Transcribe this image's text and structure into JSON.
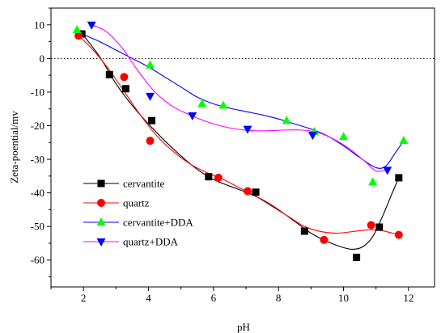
{
  "chart_data": {
    "type": "scatter",
    "title": "",
    "xlabel": "pH",
    "ylabel": "Zeta-poential/mv",
    "xlim": [
      1,
      12.8
    ],
    "ylim": [
      -68,
      15
    ],
    "xticks": [
      2,
      4,
      6,
      8,
      10,
      12
    ],
    "yticks": [
      10,
      0,
      -10,
      -20,
      -30,
      -40,
      -50,
      -60
    ],
    "xtick_labels": [
      "2",
      "4",
      "6",
      "8",
      "10",
      "12"
    ],
    "ytick_labels": [
      "10",
      "0",
      "-10",
      "-20",
      "-30",
      "-40",
      "-50",
      "-60"
    ],
    "reference_line": {
      "y": 0,
      "style": "dotted"
    },
    "grid": false,
    "legend_position": "lower-left",
    "series": [
      {
        "name": "cervantite",
        "color": "#000000",
        "marker": "square",
        "x": [
          1.95,
          2.8,
          3.3,
          4.1,
          5.85,
          7.3,
          8.8,
          10.4,
          11.1,
          11.7
        ],
        "y": [
          7.3,
          -4.8,
          -9.0,
          -18.5,
          -35.2,
          -39.8,
          -51.4,
          -59.2,
          -50.2,
          -35.5
        ],
        "curve_x": [
          1.95,
          2.5,
          3.0,
          3.5,
          4.0,
          4.5,
          5.0,
          5.5,
          6.0,
          6.5,
          7.0,
          7.5,
          8.0,
          8.5,
          9.0,
          9.5,
          10.0,
          10.3,
          10.6,
          10.9,
          11.2,
          11.5,
          11.7
        ],
        "curve_y": [
          7.5,
          0.5,
          -7.5,
          -14.0,
          -19.5,
          -24.5,
          -29.0,
          -33.0,
          -36.0,
          -38.0,
          -39.8,
          -42.0,
          -45.0,
          -48.5,
          -52.0,
          -54.5,
          -56.3,
          -56.8,
          -56.0,
          -53.0,
          -47.0,
          -40.0,
          -35.5
        ]
      },
      {
        "name": "quartz",
        "color": "#ff0000",
        "marker": "circle",
        "x": [
          1.85,
          3.25,
          4.05,
          6.15,
          7.05,
          9.4,
          10.85,
          11.7
        ],
        "y": [
          6.8,
          -5.5,
          -24.5,
          -35.5,
          -39.5,
          -54.0,
          -49.6,
          -52.5
        ],
        "curve_x": [
          1.85,
          2.3,
          2.8,
          3.3,
          3.8,
          4.3,
          4.8,
          5.3,
          5.8,
          6.3,
          6.8,
          7.3,
          7.8,
          8.3,
          8.8,
          9.3,
          9.8,
          10.3,
          10.8,
          11.2,
          11.7
        ],
        "curve_y": [
          6.8,
          2.5,
          -3.5,
          -10.5,
          -17.5,
          -23.5,
          -28.0,
          -31.5,
          -34.0,
          -36.0,
          -38.5,
          -41.0,
          -44.0,
          -47.0,
          -50.0,
          -51.5,
          -52.0,
          -51.5,
          -51.0,
          -51.3,
          -52.5
        ]
      },
      {
        "name": "cervantite+DDA",
        "color": "#00ff00",
        "marker": "triangle-up",
        "x": [
          1.8,
          4.05,
          5.65,
          6.3,
          8.25,
          9.1,
          10.0,
          10.9,
          11.85
        ],
        "y": [
          8.5,
          -2.0,
          -13.5,
          -14.0,
          -18.5,
          -21.8,
          -23.3,
          -36.8,
          -24.5
        ],
        "curve_x": [
          1.9,
          2.5,
          3.0,
          3.5,
          4.0,
          4.5,
          5.0,
          5.5,
          6.0,
          6.5,
          7.0,
          7.5,
          8.0,
          8.5,
          9.0,
          9.5,
          10.0,
          10.5,
          11.0,
          11.3,
          11.6,
          11.85
        ],
        "curve_y": [
          7.5,
          5.0,
          2.5,
          0.0,
          -2.5,
          -5.5,
          -8.5,
          -11.5,
          -13.5,
          -14.8,
          -15.8,
          -16.8,
          -18.0,
          -19.5,
          -21.0,
          -23.0,
          -26.0,
          -29.5,
          -32.5,
          -32.0,
          -28.0,
          -24.5
        ]
      },
      {
        "name": "quartz+DDA",
        "color": "#0000ff",
        "marker": "triangle-down",
        "x": [
          2.25,
          4.05,
          5.35,
          7.05,
          9.05,
          11.35
        ],
        "y": [
          10.0,
          -11.2,
          -17.0,
          -21.0,
          -22.8,
          -33.2
        ],
        "curve_x": [
          2.25,
          2.7,
          3.2,
          3.7,
          4.2,
          4.7,
          5.2,
          5.7,
          6.2,
          6.7,
          7.2,
          7.7,
          8.2,
          8.7,
          9.2,
          9.7,
          10.2,
          10.7,
          11.0,
          11.35
        ],
        "curve_y": [
          10.0,
          8.0,
          3.0,
          -4.0,
          -10.0,
          -14.0,
          -16.5,
          -18.5,
          -20.0,
          -21.0,
          -21.5,
          -21.5,
          -21.3,
          -21.3,
          -22.0,
          -24.0,
          -27.0,
          -31.0,
          -33.5,
          -33.2
        ]
      }
    ]
  }
}
